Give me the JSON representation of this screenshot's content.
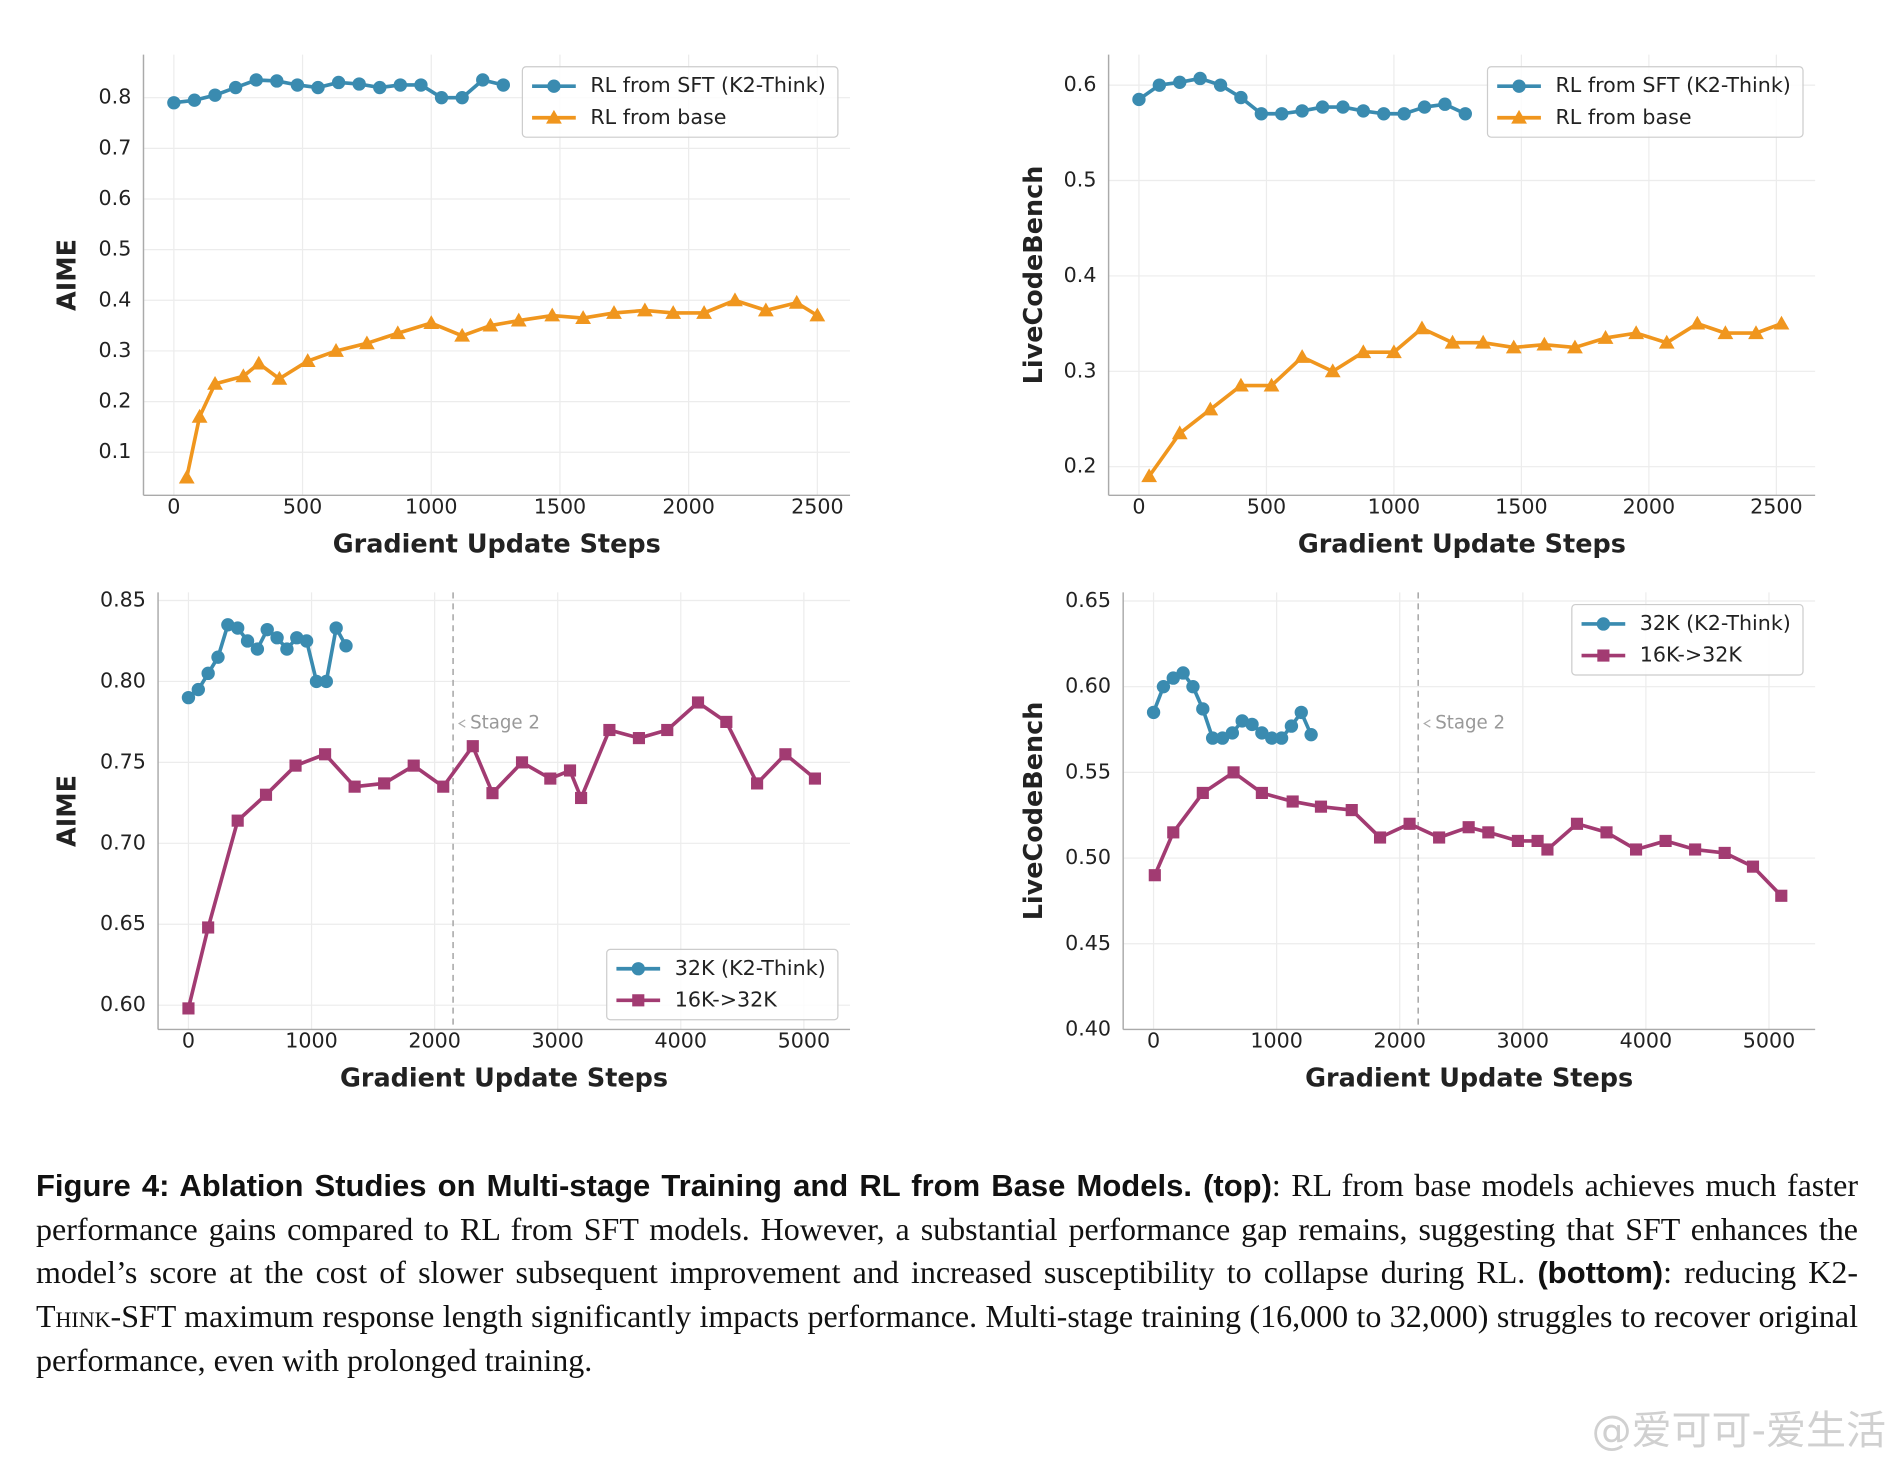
{
  "chart_data": [
    {
      "type": "line",
      "xlabel": "Gradient Update Steps",
      "ylabel": "AIME",
      "xlim": [
        -118,
        2627
      ],
      "ylim": [
        0.015,
        0.885
      ],
      "xticks": [
        0,
        500,
        1000,
        1500,
        2000,
        2500
      ],
      "yticks": [
        0.1,
        0.2,
        0.3,
        0.4,
        0.5,
        0.6,
        0.7,
        0.8
      ],
      "grid": true,
      "legend": "upper right",
      "series": [
        {
          "name": "RL from SFT (K2-Think)",
          "color": "#3a8bb0",
          "marker": "circle",
          "x": [
            0,
            80,
            160,
            240,
            320,
            400,
            480,
            560,
            640,
            720,
            800,
            880,
            960,
            1040,
            1120,
            1200,
            1280
          ],
          "values": [
            0.79,
            0.795,
            0.805,
            0.82,
            0.835,
            0.833,
            0.825,
            0.82,
            0.83,
            0.827,
            0.82,
            0.825,
            0.825,
            0.8,
            0.8,
            0.835,
            0.825
          ]
        },
        {
          "name": "RL from base",
          "color": "#f0961e",
          "marker": "triangle",
          "x": [
            50,
            100,
            160,
            270,
            330,
            410,
            520,
            630,
            750,
            870,
            1000,
            1120,
            1230,
            1340,
            1470,
            1590,
            1710,
            1830,
            1940,
            2060,
            2180,
            2300,
            2420,
            2500
          ],
          "values": [
            0.05,
            0.17,
            0.235,
            0.25,
            0.275,
            0.245,
            0.28,
            0.3,
            0.315,
            0.335,
            0.355,
            0.33,
            0.35,
            0.36,
            0.37,
            0.365,
            0.375,
            0.38,
            0.375,
            0.375,
            0.4,
            0.38,
            0.395,
            0.37
          ]
        }
      ]
    },
    {
      "type": "line",
      "xlabel": "Gradient Update Steps",
      "ylabel": "LiveCodeBench",
      "xlim": [
        -119,
        2652
      ],
      "ylim": [
        0.17,
        0.632
      ],
      "xticks": [
        0,
        500,
        1000,
        1500,
        2000,
        2500
      ],
      "yticks": [
        0.2,
        0.3,
        0.4,
        0.5,
        0.6
      ],
      "grid": true,
      "legend": "upper right",
      "series": [
        {
          "name": "RL from SFT (K2-Think)",
          "color": "#3a8bb0",
          "marker": "circle",
          "x": [
            0,
            80,
            160,
            240,
            320,
            400,
            480,
            560,
            640,
            720,
            800,
            880,
            960,
            1040,
            1120,
            1200,
            1280
          ],
          "values": [
            0.585,
            0.6,
            0.603,
            0.607,
            0.6,
            0.587,
            0.57,
            0.57,
            0.573,
            0.577,
            0.577,
            0.573,
            0.57,
            0.57,
            0.577,
            0.58,
            0.57
          ]
        },
        {
          "name": "RL from base",
          "color": "#f0961e",
          "marker": "triangle",
          "x": [
            40,
            160,
            280,
            400,
            520,
            640,
            760,
            880,
            1000,
            1110,
            1230,
            1350,
            1470,
            1590,
            1710,
            1830,
            1950,
            2070,
            2190,
            2300,
            2420,
            2520
          ],
          "values": [
            0.19,
            0.235,
            0.26,
            0.285,
            0.285,
            0.315,
            0.3,
            0.32,
            0.32,
            0.345,
            0.33,
            0.33,
            0.325,
            0.328,
            0.325,
            0.335,
            0.34,
            0.33,
            0.35,
            0.34,
            0.34,
            0.35
          ]
        }
      ]
    },
    {
      "type": "line",
      "xlabel": "Gradient Update Steps",
      "ylabel": "AIME",
      "xlim": [
        -247,
        5375
      ],
      "ylim": [
        0.585,
        0.855
      ],
      "xticks": [
        0,
        1000,
        2000,
        3000,
        4000,
        5000
      ],
      "yticks": [
        {
          "value": 0.6,
          "label": "0.60"
        },
        0.65,
        {
          "value": 0.7,
          "label": "0.70"
        },
        0.75,
        {
          "value": 0.8,
          "label": "0.80"
        },
        0.85
      ],
      "grid": true,
      "legend": "lower right",
      "vline": {
        "x": 2150,
        "label": "Stage 2"
      },
      "series": [
        {
          "name": "32K (K2-Think)",
          "color": "#3a8bb0",
          "marker": "circle",
          "x": [
            0,
            80,
            160,
            240,
            320,
            400,
            480,
            560,
            640,
            720,
            800,
            880,
            960,
            1040,
            1120,
            1200,
            1280
          ],
          "values": [
            0.79,
            0.795,
            0.805,
            0.815,
            0.835,
            0.833,
            0.825,
            0.82,
            0.832,
            0.827,
            0.82,
            0.827,
            0.825,
            0.8,
            0.8,
            0.833,
            0.822
          ]
        },
        {
          "name": "16K->32K",
          "color": "#a23b72",
          "marker": "square",
          "x": [
            0,
            160,
            400,
            630,
            870,
            1110,
            1350,
            1590,
            1830,
            2070,
            2310,
            2470,
            2710,
            2940,
            3100,
            3190,
            3420,
            3660,
            3890,
            4140,
            4370,
            4620,
            4850,
            5090
          ],
          "values": [
            0.598,
            0.648,
            0.714,
            0.73,
            0.748,
            0.755,
            0.735,
            0.737,
            0.748,
            0.735,
            0.76,
            0.731,
            0.75,
            0.74,
            0.745,
            0.728,
            0.77,
            0.765,
            0.77,
            0.787,
            0.775,
            0.737,
            0.755,
            0.74
          ]
        }
      ]
    },
    {
      "type": "line",
      "xlabel": "Gradient Update Steps",
      "ylabel": "LiveCodeBench",
      "xlim": [
        -247,
        5375
      ],
      "ylim": [
        0.4,
        0.655
      ],
      "xticks": [
        0,
        1000,
        2000,
        3000,
        4000,
        5000
      ],
      "yticks": [
        {
          "value": 0.4,
          "label": "0.40"
        },
        0.45,
        {
          "value": 0.5,
          "label": "0.50"
        },
        0.55,
        {
          "value": 0.6,
          "label": "0.60"
        },
        0.65
      ],
      "grid": true,
      "legend": "upper right",
      "vline": {
        "x": 2150,
        "label": "Stage 2"
      },
      "series": [
        {
          "name": "32K (K2-Think)",
          "color": "#3a8bb0",
          "marker": "circle",
          "x": [
            0,
            80,
            160,
            240,
            320,
            400,
            480,
            560,
            640,
            720,
            800,
            880,
            960,
            1040,
            1120,
            1200,
            1280
          ],
          "values": [
            0.585,
            0.6,
            0.605,
            0.608,
            0.6,
            0.587,
            0.57,
            0.57,
            0.573,
            0.58,
            0.578,
            0.573,
            0.57,
            0.57,
            0.577,
            0.585,
            0.572
          ]
        },
        {
          "name": "16K->32K",
          "color": "#a23b72",
          "marker": "square",
          "x": [
            10,
            160,
            400,
            650,
            880,
            1130,
            1360,
            1610,
            1840,
            2080,
            2320,
            2560,
            2720,
            2960,
            3120,
            3200,
            3440,
            3680,
            3920,
            4160,
            4400,
            4640,
            4870,
            5100
          ],
          "values": [
            0.49,
            0.515,
            0.538,
            0.55,
            0.538,
            0.533,
            0.53,
            0.528,
            0.512,
            0.52,
            0.512,
            0.518,
            0.515,
            0.51,
            0.51,
            0.505,
            0.52,
            0.515,
            0.505,
            0.51,
            0.505,
            0.503,
            0.495,
            0.478
          ]
        }
      ]
    }
  ],
  "caption": {
    "runs": [
      {
        "text": "Figure 4: Ablation Studies on Multi-stage Training and RL from Base Models. (top)",
        "bold": true
      },
      {
        "text": ": RL from base models achieves much faster performance gains compared to RL from SFT models. However, a substantial performance gap remains, suggesting that SFT enhances the model’s score at the cost of slower subsequent improvement and increased susceptibility to collapse during RL. "
      },
      {
        "text": "(bottom)",
        "bold": true
      },
      {
        "text": ": reducing K2-"
      },
      {
        "text": "Think",
        "smallcaps": true
      },
      {
        "text": "-SFT maximum response length significantly impacts performance. Multi-stage training (16,000 to 32,000) struggles to recover original performance, even with prolonged training."
      }
    ]
  },
  "watermark": "@爱可可-爱生活"
}
